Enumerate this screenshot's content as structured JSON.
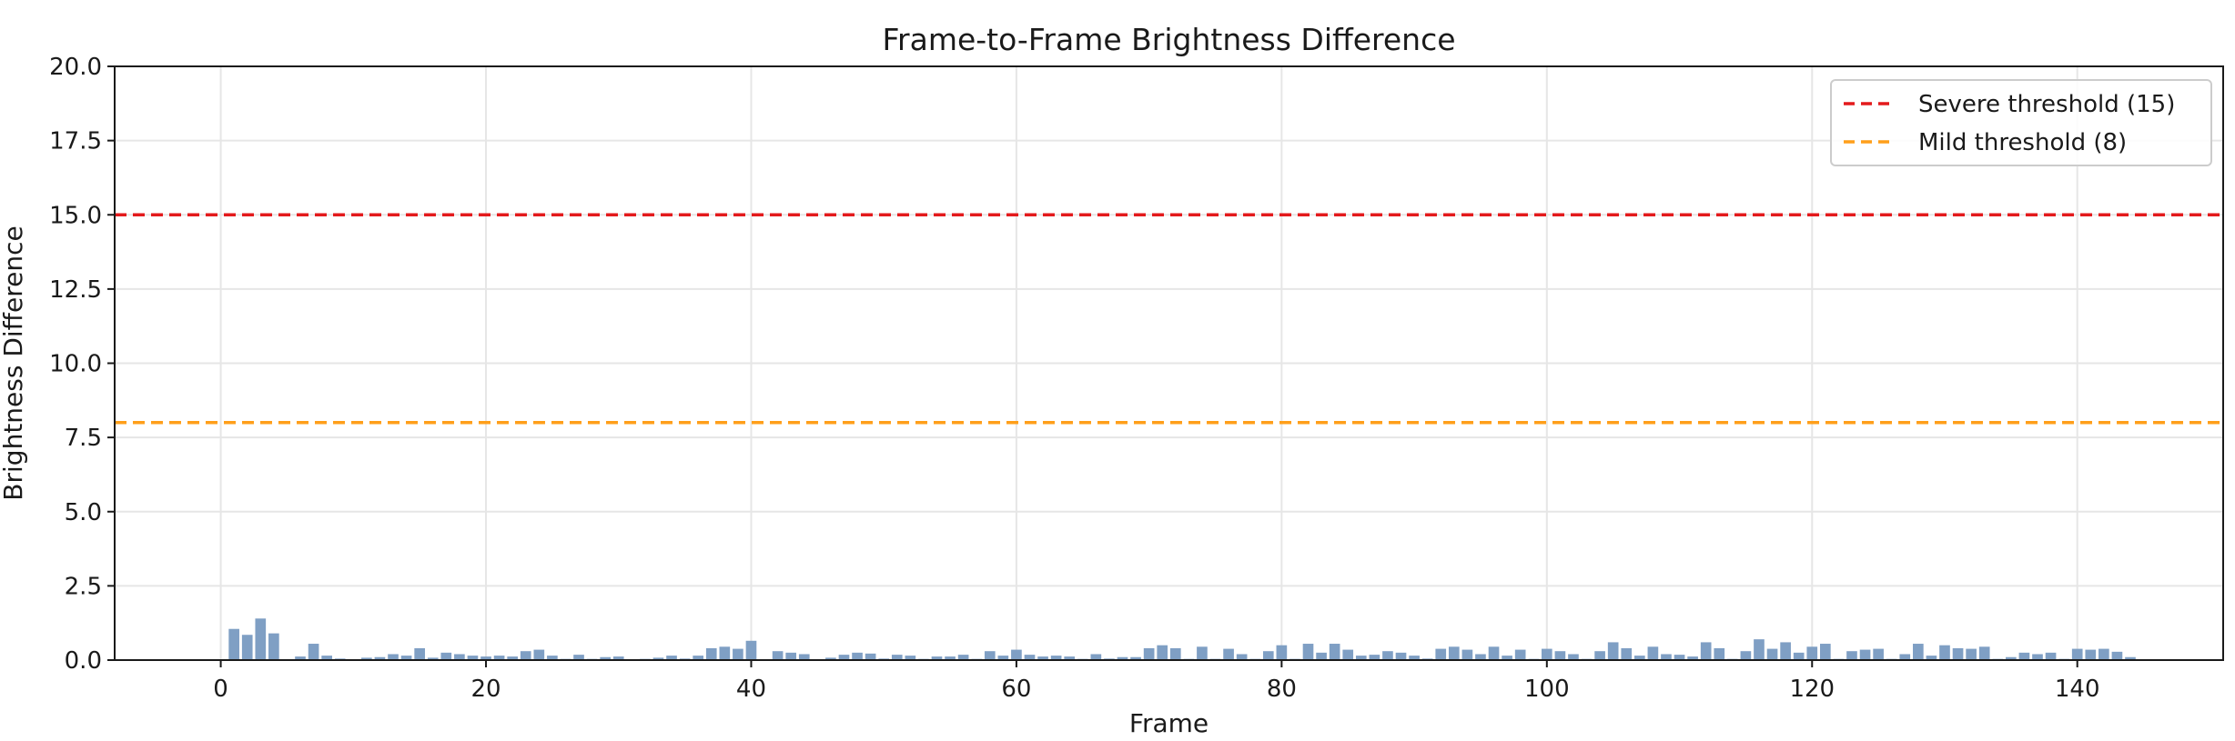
{
  "chart_data": {
    "type": "bar",
    "title": "Frame-to-Frame Brightness Difference",
    "xlabel": "Frame",
    "ylabel": "Brightness Difference",
    "xlim": [
      -8,
      151
    ],
    "ylim": [
      0,
      20
    ],
    "xticks": [
      0,
      20,
      40,
      60,
      80,
      100,
      120,
      140
    ],
    "yticks": [
      0.0,
      2.5,
      5.0,
      7.5,
      10.0,
      12.5,
      15.0,
      17.5,
      20.0
    ],
    "grid": true,
    "legend_position": "top-right",
    "bar_color": "#7f9fc4",
    "x": [
      0,
      1,
      2,
      3,
      4,
      5,
      6,
      7,
      8,
      9,
      10,
      11,
      12,
      13,
      14,
      15,
      16,
      17,
      18,
      19,
      20,
      21,
      22,
      23,
      24,
      25,
      26,
      27,
      28,
      29,
      30,
      31,
      32,
      33,
      34,
      35,
      36,
      37,
      38,
      39,
      40,
      41,
      42,
      43,
      44,
      45,
      46,
      47,
      48,
      49,
      50,
      51,
      52,
      53,
      54,
      55,
      56,
      57,
      58,
      59,
      60,
      61,
      62,
      63,
      64,
      65,
      66,
      67,
      68,
      69,
      70,
      71,
      72,
      73,
      74,
      75,
      76,
      77,
      78,
      79,
      80,
      81,
      82,
      83,
      84,
      85,
      86,
      87,
      88,
      89,
      90,
      91,
      92,
      93,
      94,
      95,
      96,
      97,
      98,
      99,
      100,
      101,
      102,
      103,
      104,
      105,
      106,
      107,
      108,
      109,
      110,
      111,
      112,
      113,
      114,
      115,
      116,
      117,
      118,
      119,
      120,
      121,
      122,
      123,
      124,
      125,
      126,
      127,
      128,
      129,
      130,
      131,
      132,
      133,
      134,
      135,
      136,
      137,
      138,
      139,
      140,
      141,
      142,
      143,
      144
    ],
    "values": [
      0.0,
      1.05,
      0.85,
      1.4,
      0.9,
      0.02,
      0.12,
      0.55,
      0.15,
      0.05,
      0.0,
      0.08,
      0.1,
      0.2,
      0.15,
      0.4,
      0.08,
      0.25,
      0.2,
      0.15,
      0.12,
      0.15,
      0.12,
      0.3,
      0.35,
      0.15,
      0.04,
      0.18,
      0.04,
      0.1,
      0.12,
      0.0,
      0.04,
      0.08,
      0.15,
      0.05,
      0.15,
      0.4,
      0.45,
      0.38,
      0.65,
      0.03,
      0.3,
      0.25,
      0.2,
      0.03,
      0.08,
      0.18,
      0.25,
      0.22,
      0.05,
      0.18,
      0.15,
      0.04,
      0.12,
      0.12,
      0.18,
      0.04,
      0.3,
      0.15,
      0.35,
      0.18,
      0.12,
      0.15,
      0.12,
      0.04,
      0.2,
      0.05,
      0.1,
      0.1,
      0.4,
      0.5,
      0.4,
      0.04,
      0.45,
      0.04,
      0.38,
      0.2,
      0.04,
      0.3,
      0.5,
      0.04,
      0.55,
      0.25,
      0.55,
      0.35,
      0.15,
      0.18,
      0.3,
      0.25,
      0.15,
      0.05,
      0.38,
      0.45,
      0.35,
      0.2,
      0.45,
      0.15,
      0.35,
      0.04,
      0.38,
      0.3,
      0.2,
      0.04,
      0.3,
      0.6,
      0.4,
      0.15,
      0.45,
      0.2,
      0.18,
      0.12,
      0.6,
      0.4,
      0.04,
      0.3,
      0.7,
      0.38,
      0.6,
      0.25,
      0.45,
      0.55,
      0.04,
      0.3,
      0.35,
      0.38,
      0.04,
      0.2,
      0.55,
      0.15,
      0.5,
      0.4,
      0.38,
      0.45,
      0.04,
      0.1,
      0.25,
      0.2,
      0.25,
      0.04,
      0.38,
      0.35,
      0.38,
      0.28,
      0.1
    ],
    "reference_lines": [
      {
        "name": "Severe threshold (15)",
        "y": 15,
        "color": "#e31a1c",
        "style": "dashed"
      },
      {
        "name": "Mild threshold (8)",
        "y": 8,
        "color": "#ff9f1a",
        "style": "dashed"
      }
    ]
  }
}
